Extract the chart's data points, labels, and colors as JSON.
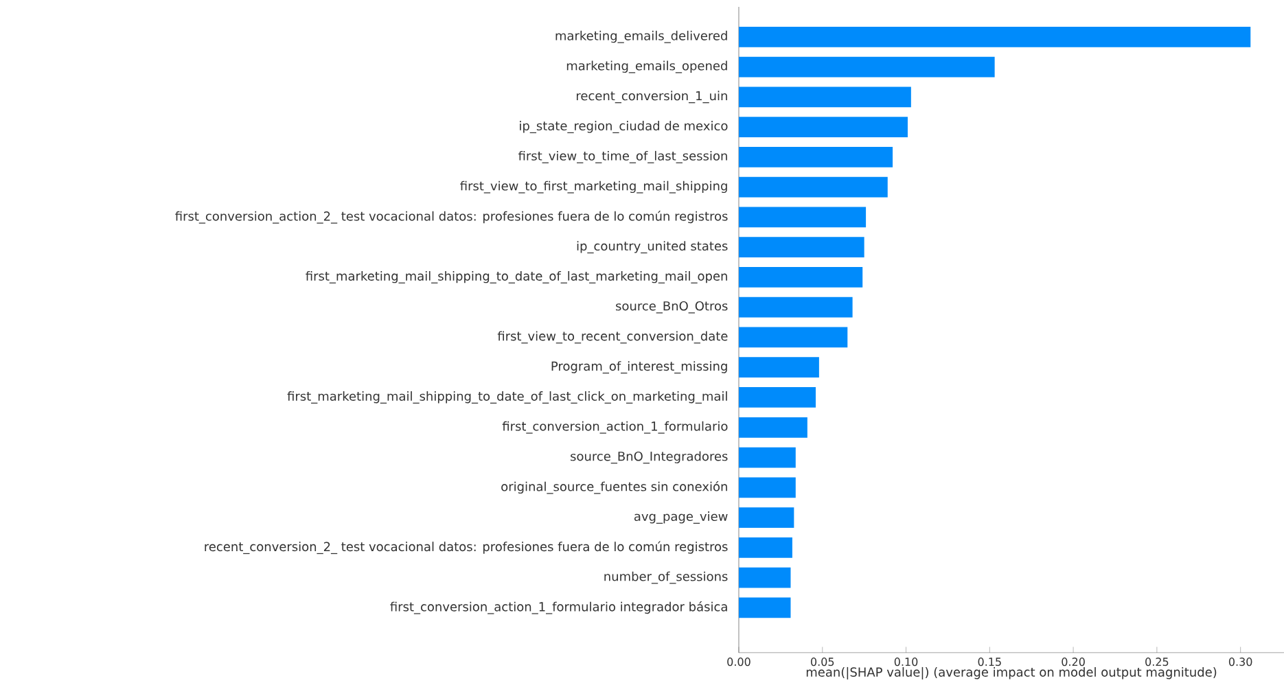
{
  "chart_data": {
    "type": "bar",
    "orientation": "horizontal",
    "xlabel": "mean(|SHAP value|) (average impact on model output magnitude)",
    "categories": [
      "marketing_emails_delivered",
      "marketing_emails_opened",
      "recent_conversion_1_uin",
      "ip_state_region_ciudad de mexico",
      "first_view_to_time_of_last_session",
      "first_view_to_first_marketing_mail_shipping",
      "first_conversion_action_2_ test vocacional datos: profesiones fuera de lo común registros",
      "ip_country_united states",
      "first_marketing_mail_shipping_to_date_of_last_marketing_mail_open",
      "source_BnO_Otros",
      "first_view_to_recent_conversion_date",
      "Program_of_interest_missing",
      "first_marketing_mail_shipping_to_date_of_last_click_on_marketing_mail",
      "first_conversion_action_1_formulario",
      "source_BnO_Integradores",
      "original_source_fuentes sin conexión",
      "avg_page_view",
      "recent_conversion_2_ test vocacional datos: profesiones fuera de lo común registros",
      "number_of_sessions",
      "first_conversion_action_1_formulario integrador básica"
    ],
    "values": [
      0.306,
      0.153,
      0.103,
      0.101,
      0.092,
      0.089,
      0.076,
      0.075,
      0.074,
      0.068,
      0.065,
      0.048,
      0.046,
      0.041,
      0.034,
      0.034,
      0.033,
      0.032,
      0.031,
      0.031
    ],
    "color": "#008bfb",
    "xlim": [
      0,
      0.326
    ],
    "xticks": [
      {
        "value": 0,
        "label": "0.00"
      },
      {
        "value": 0.05,
        "label": "0.05"
      },
      {
        "value": 0.1,
        "label": "0.10"
      },
      {
        "value": 0.15,
        "label": "0.15"
      },
      {
        "value": 0.2,
        "label": "0.20"
      },
      {
        "value": 0.25,
        "label": "0.25"
      },
      {
        "value": 0.3,
        "label": "0.30"
      }
    ]
  }
}
